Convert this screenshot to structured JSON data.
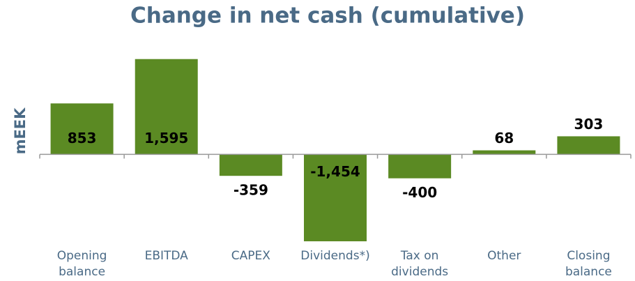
{
  "chart_data": {
    "type": "bar",
    "title": "Change in net cash (cumulative)",
    "y_label": "mEEK",
    "categories": [
      "Opening balance",
      "EBITDA",
      "CAPEX",
      "Dividends*)",
      "Tax on dividends",
      "Other",
      "Closing balance"
    ],
    "values": [
      853,
      1595,
      -359,
      -1454,
      -400,
      68,
      303
    ],
    "value_labels": [
      "853",
      "1,595",
      "-359",
      "-1,454",
      "-400",
      "68",
      "303"
    ],
    "color": "#5b8a23",
    "ylim": [
      -1500,
      1650
    ]
  }
}
